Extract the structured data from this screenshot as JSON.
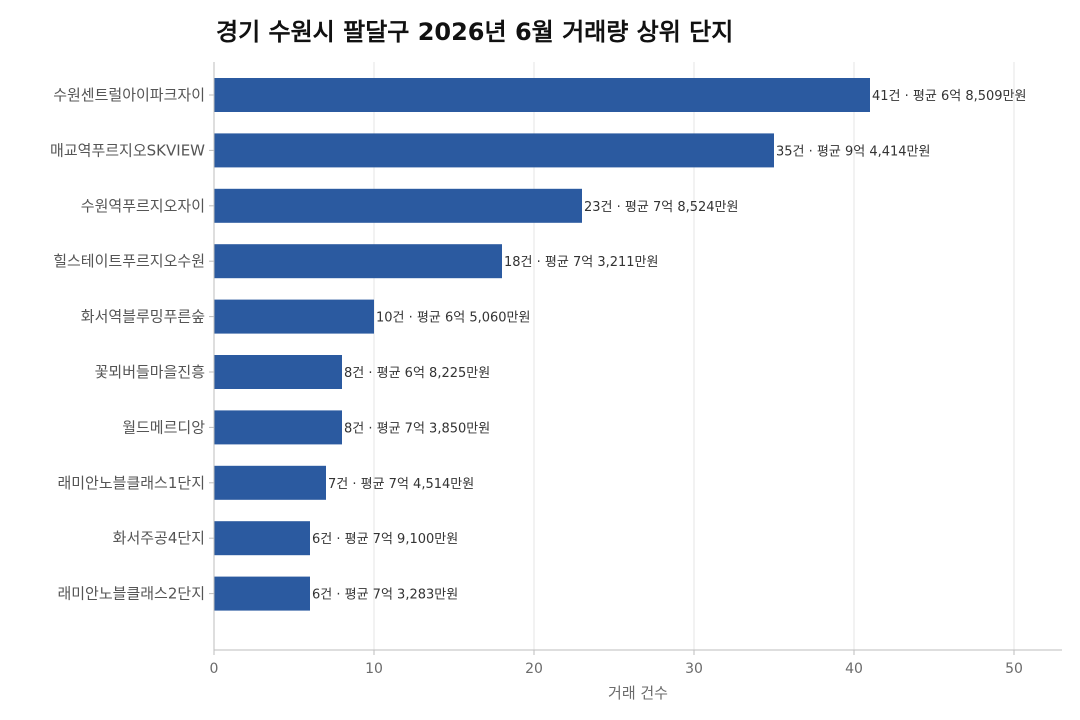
{
  "chart_data": {
    "type": "bar",
    "orientation": "horizontal",
    "title": "경기 수원시 팔달구 2026년 6월 거래량 상위 단지",
    "xlabel": "거래 건수",
    "ylabel": "",
    "xlim": [
      0,
      53
    ],
    "xticks": [
      0,
      10,
      20,
      30,
      40,
      50
    ],
    "grid": true,
    "bar_color": "#2b5aa0",
    "categories": [
      "수원센트럴아이파크자이",
      "매교역푸르지오SKVIEW",
      "수원역푸르지오자이",
      "힐스테이트푸르지오수원",
      "화서역블루밍푸른숲",
      "꽃뫼버들마을진흥",
      "월드메르디앙",
      "래미안노블클래스1단지",
      "화서주공4단지",
      "래미안노블클래스2단지"
    ],
    "values": [
      41,
      35,
      23,
      18,
      10,
      8,
      8,
      7,
      6,
      6
    ],
    "data_labels": [
      "41건 · 평균 6억 8,509만원",
      "35건 · 평균 9억 4,414만원",
      "23건 · 평균 7억 8,524만원",
      "18건 · 평균 7억 3,211만원",
      "10건 · 평균 6억 5,060만원",
      "8건 · 평균 6억 8,225만원",
      "8건 · 평균 7억 3,850만원",
      "7건 · 평균 7억 4,514만원",
      "6건 · 평균 7억 9,100만원",
      "6건 · 평균 7억 3,283만원"
    ]
  }
}
